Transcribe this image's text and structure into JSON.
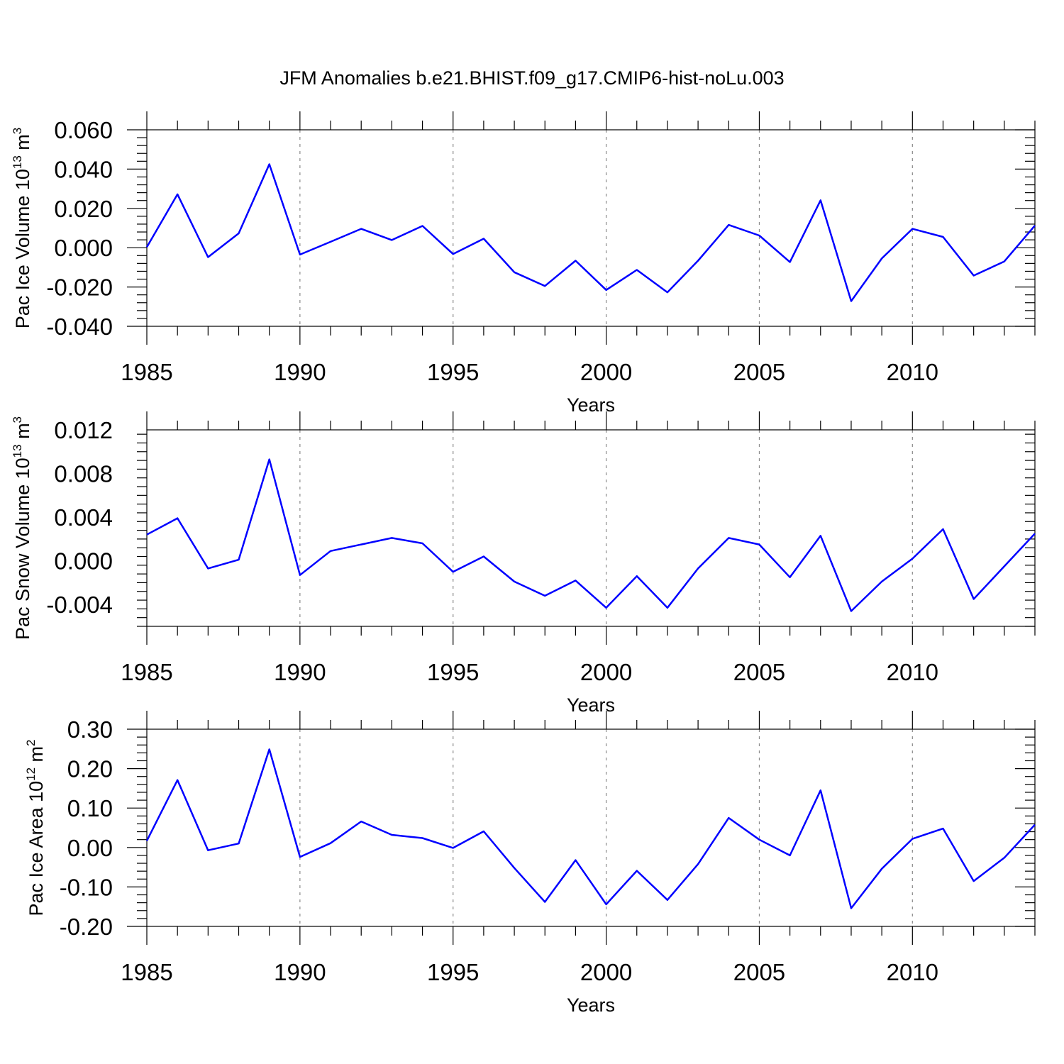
{
  "title": "JFM Anomalies b.e21.BHIST.f09_g17.CMIP6-hist-noLu.003",
  "chart_data": [
    {
      "type": "line",
      "title": "",
      "xlabel": "Years",
      "ylabel": {
        "text": "Pac Ice Volume 10",
        "exp": "13",
        "unit": " m",
        "unit_exp": "3"
      },
      "xlim": [
        1985,
        2014
      ],
      "ylim": [
        -0.04,
        0.06
      ],
      "xticks": [
        1985,
        1990,
        1995,
        2000,
        2005,
        2010
      ],
      "xtick_labels": [
        "1985",
        "1990",
        "1995",
        "2000",
        "2005",
        "2010"
      ],
      "yticks": [
        -0.04,
        -0.02,
        0.0,
        0.02,
        0.04,
        0.06
      ],
      "ytick_labels": [
        "-0.040",
        "-0.020",
        "0.000",
        "0.020",
        "0.040",
        "0.060"
      ],
      "grid": "vertical dashed at major x ticks",
      "x": [
        1985,
        1986,
        1987,
        1988,
        1989,
        1990,
        1991,
        1992,
        1993,
        1994,
        1995,
        1996,
        1997,
        1998,
        1999,
        2000,
        2001,
        2002,
        2003,
        2004,
        2005,
        2006,
        2007,
        2008,
        2009,
        2010,
        2011,
        2012,
        2013,
        2014
      ],
      "series": [
        {
          "color": "#0000ff",
          "values": [
            0.0003,
            0.0272,
            -0.0048,
            0.0073,
            0.0425,
            -0.0035,
            0.003,
            0.0096,
            0.0039,
            0.0111,
            -0.0032,
            0.0046,
            -0.0125,
            -0.0195,
            -0.0066,
            -0.0215,
            -0.0113,
            -0.0227,
            -0.0066,
            0.0116,
            0.0062,
            -0.0073,
            0.0241,
            -0.0272,
            -0.0055,
            0.0096,
            0.0055,
            -0.0142,
            -0.007,
            0.0113
          ]
        }
      ]
    },
    {
      "type": "line",
      "title": "",
      "xlabel": "Years",
      "ylabel": {
        "text": "Pac Snow Volume 10",
        "exp": "13",
        "unit": " m",
        "unit_exp": "3"
      },
      "xlim": [
        1985,
        2014
      ],
      "ylim": [
        -0.006,
        0.012
      ],
      "xticks": [
        1985,
        1990,
        1995,
        2000,
        2005,
        2010
      ],
      "xtick_labels": [
        "1985",
        "1990",
        "1995",
        "2000",
        "2005",
        "2010"
      ],
      "yticks": [
        -0.004,
        0.0,
        0.004,
        0.008,
        0.012
      ],
      "ytick_labels": [
        "-0.004",
        "0.000",
        "0.004",
        "0.008",
        "0.012"
      ],
      "grid": "vertical dashed at major x ticks",
      "x": [
        1985,
        1986,
        1987,
        1988,
        1989,
        1990,
        1991,
        1992,
        1993,
        1994,
        1995,
        1996,
        1997,
        1998,
        1999,
        2000,
        2001,
        2002,
        2003,
        2004,
        2005,
        2006,
        2007,
        2008,
        2009,
        2010,
        2011,
        2012,
        2013,
        2014
      ],
      "series": [
        {
          "color": "#0000ff",
          "values": [
            0.0024,
            0.0039,
            -0.0007,
            0.0001,
            0.0093,
            -0.0013,
            0.0009,
            0.0015,
            0.0021,
            0.0016,
            -0.001,
            0.0004,
            -0.0019,
            -0.0032,
            -0.0018,
            -0.0043,
            -0.0014,
            -0.0043,
            -0.0007,
            0.0021,
            0.0015,
            -0.0015,
            0.0023,
            -0.0046,
            -0.0019,
            0.0002,
            0.0029,
            -0.0035,
            -0.0005,
            0.0025
          ]
        }
      ]
    },
    {
      "type": "line",
      "title": "",
      "xlabel": "Years",
      "ylabel": {
        "text": "Pac Ice Area 10",
        "exp": "12",
        "unit": " m",
        "unit_exp": "2"
      },
      "xlim": [
        1985,
        2014
      ],
      "ylim": [
        -0.2,
        0.3
      ],
      "xticks": [
        1985,
        1990,
        1995,
        2000,
        2005,
        2010
      ],
      "xtick_labels": [
        "1985",
        "1990",
        "1995",
        "2000",
        "2005",
        "2010"
      ],
      "yticks": [
        -0.2,
        -0.1,
        0.0,
        0.1,
        0.2,
        0.3
      ],
      "ytick_labels": [
        "-0.20",
        "-0.10",
        "0.00",
        "0.10",
        "0.20",
        "0.30"
      ],
      "grid": "vertical dashed at major x ticks",
      "x": [
        1985,
        1986,
        1987,
        1988,
        1989,
        1990,
        1991,
        1992,
        1993,
        1994,
        1995,
        1996,
        1997,
        1998,
        1999,
        2000,
        2001,
        2002,
        2003,
        2004,
        2005,
        2006,
        2007,
        2008,
        2009,
        2010,
        2011,
        2012,
        2013,
        2014
      ],
      "series": [
        {
          "color": "#0000ff",
          "values": [
            0.017,
            0.171,
            -0.007,
            0.01,
            0.249,
            -0.024,
            0.011,
            0.066,
            0.032,
            0.024,
            -0.001,
            0.041,
            -0.052,
            -0.138,
            -0.032,
            -0.144,
            -0.059,
            -0.133,
            -0.042,
            0.075,
            0.02,
            -0.02,
            0.145,
            -0.154,
            -0.054,
            0.022,
            0.048,
            -0.085,
            -0.026,
            0.058
          ]
        }
      ]
    }
  ]
}
